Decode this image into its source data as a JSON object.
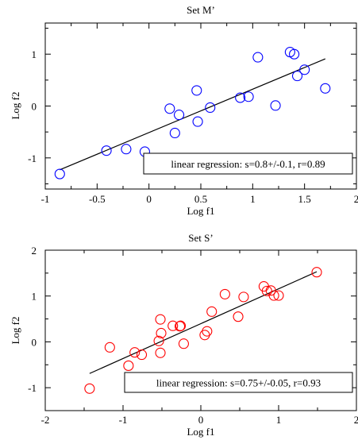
{
  "chart_data": [
    {
      "type": "scatter",
      "title": "Set M’",
      "xlabel": "Log f1",
      "ylabel": "Log f2",
      "xlim": [
        -1,
        2
      ],
      "ylim": [
        -1.6,
        1.6
      ],
      "x_ticks": [
        -1,
        -0.5,
        0,
        0.5,
        1,
        1.5,
        2
      ],
      "x_tick_labels": [
        "-1",
        "-0.5",
        "0",
        "0.5",
        "1",
        "1.5",
        "2"
      ],
      "y_ticks": [
        -1,
        0,
        1
      ],
      "y_tick_labels": [
        "-1",
        "0",
        "1"
      ],
      "marker_color": "#0000ff",
      "grid": false,
      "series": [
        {
          "x": [
            -0.86,
            -0.41,
            -0.22,
            -0.04,
            0.2,
            0.25,
            0.29,
            0.46,
            0.47,
            0.59,
            0.88,
            0.96,
            1.05,
            1.22,
            1.36,
            1.4,
            1.43,
            1.5,
            1.7
          ],
          "y": [
            -1.31,
            -0.86,
            -0.83,
            -0.88,
            -0.05,
            -0.52,
            -0.17,
            0.3,
            -0.3,
            -0.03,
            0.16,
            0.18,
            0.94,
            0.01,
            1.04,
            1.0,
            0.58,
            0.7,
            0.34
          ]
        }
      ],
      "regression_line": {
        "x": [
          -0.86,
          1.7
        ],
        "y": [
          -1.23,
          0.91
        ]
      },
      "annotation": "linear regression: s=0.8+/-0.1, r=0.89",
      "annotation_placement": "bottom-right"
    },
    {
      "type": "scatter",
      "title": "Set S’",
      "xlabel": "Log f1",
      "ylabel": "Log f2",
      "xlim": [
        -2,
        2
      ],
      "ylim": [
        -1.5,
        2
      ],
      "x_ticks": [
        -2,
        -1,
        0,
        1,
        2
      ],
      "x_tick_labels": [
        "-2",
        "-1",
        "0",
        "1",
        "2"
      ],
      "y_ticks": [
        -1,
        0,
        1,
        2
      ],
      "y_tick_labels": [
        "-1",
        "0",
        "1",
        "2"
      ],
      "marker_color": "#ff0000",
      "grid": false,
      "series": [
        {
          "x": [
            -1.43,
            -1.17,
            -0.93,
            -0.85,
            -0.76,
            -0.54,
            -0.52,
            -0.52,
            -0.51,
            -0.36,
            -0.27,
            -0.22,
            -0.26,
            0.05,
            0.08,
            0.14,
            0.31,
            0.48,
            0.55,
            0.81,
            0.85,
            0.9,
            0.94,
            1.0,
            1.49
          ],
          "y": [
            -1.02,
            -0.12,
            -0.52,
            -0.23,
            -0.28,
            0.02,
            -0.24,
            0.49,
            0.19,
            0.35,
            0.34,
            -0.04,
            0.35,
            0.15,
            0.23,
            0.66,
            1.04,
            0.55,
            0.98,
            1.21,
            1.11,
            1.12,
            1.01,
            1.01,
            1.52
          ]
        }
      ],
      "regression_line": {
        "x": [
          -1.43,
          1.49
        ],
        "y": [
          -0.69,
          1.53
        ]
      },
      "annotation": "linear regression: s=0.75+/-0.05, r=0.93",
      "annotation_placement": "bottom-right"
    }
  ]
}
